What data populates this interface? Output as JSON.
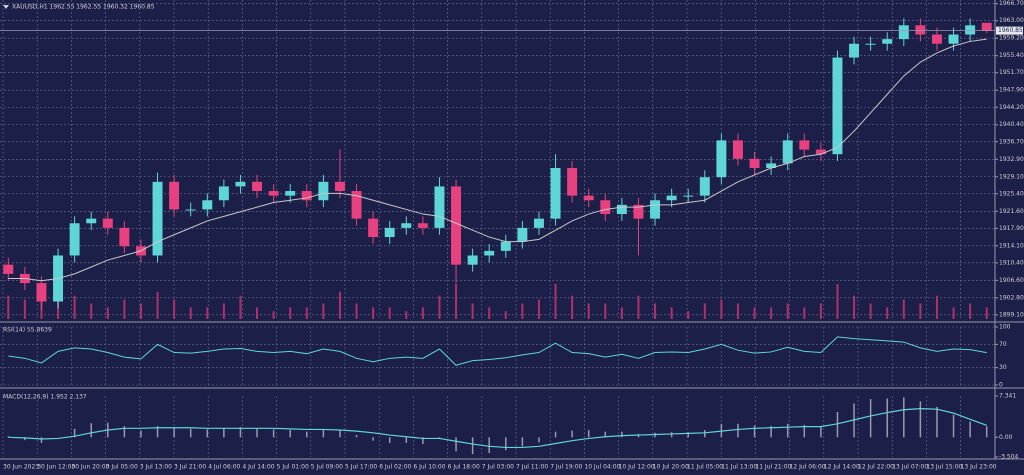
{
  "chart_data": [
    {
      "type": "candlestick",
      "title": "XAUUSD,H1 1962.55 1962.55 1960.32 1960.85",
      "open": [
        1910,
        1908,
        1906,
        1902,
        1912,
        1919,
        1920,
        1918,
        1914,
        1912,
        1928,
        1922,
        1922,
        1924,
        1927,
        1928,
        1926,
        1925,
        1926,
        1924,
        1928,
        1926,
        1920,
        1916,
        1918,
        1919,
        1918,
        1927,
        1910,
        1912,
        1913,
        1915,
        1918,
        1920,
        1931,
        1925,
        1924,
        1921,
        1923,
        1920,
        1924,
        1925,
        1925,
        1929,
        1937,
        1933,
        1931,
        1932,
        1937,
        1935,
        1934,
        1955,
        1958,
        1958,
        1959,
        1962,
        1960,
        1958,
        1960,
        1962.55
      ],
      "high": [
        1911.5,
        1909.5,
        1907.5,
        1913.5,
        1920.5,
        1921.5,
        1921.5,
        1919.5,
        1915.5,
        1930,
        1929.5,
        1923.5,
        1925.5,
        1928.5,
        1929.5,
        1929.5,
        1927.5,
        1927.5,
        1927.5,
        1929.5,
        1935,
        1927.5,
        1921.5,
        1919.5,
        1920.5,
        1920.5,
        1929,
        1928.5,
        1913.5,
        1914.5,
        1916.5,
        1919.5,
        1921.5,
        1934,
        1932.5,
        1926.5,
        1925.5,
        1924.5,
        1924.5,
        1925.5,
        1926.5,
        1926.5,
        1930.5,
        1938.5,
        1938.5,
        1934.5,
        1933.5,
        1938.5,
        1938.5,
        1936.5,
        1956.5,
        1959.5,
        1959.5,
        1960.5,
        1963.5,
        1963.5,
        1961.5,
        1961.5,
        1963.5,
        1962.55
      ],
      "low": [
        1906.5,
        1904.5,
        1900,
        1900.5,
        1910.5,
        1917.5,
        1916.5,
        1912.5,
        1910.5,
        1910.5,
        1920.5,
        1920.5,
        1920.5,
        1922.5,
        1925.5,
        1924.5,
        1923.5,
        1923.5,
        1922.5,
        1922.5,
        1924.5,
        1918.5,
        1914.5,
        1914.5,
        1916.5,
        1916.5,
        1916.5,
        1906,
        1908.5,
        1910.5,
        1911.5,
        1913.5,
        1916.5,
        1918.5,
        1923.5,
        1922.5,
        1919.5,
        1919.5,
        1912,
        1918.5,
        1922.5,
        1923.5,
        1923.5,
        1927.5,
        1931.5,
        1929.5,
        1929.5,
        1930.5,
        1933.5,
        1932.5,
        1932.5,
        1953.5,
        1956.5,
        1956.5,
        1957.5,
        1958.5,
        1956.5,
        1956.5,
        1958.5,
        1960.32
      ],
      "close": [
        1908,
        1906,
        1902,
        1912,
        1919,
        1920,
        1918,
        1914,
        1912,
        1928,
        1922,
        1922,
        1924,
        1927,
        1928,
        1926,
        1925,
        1926,
        1924,
        1928,
        1926,
        1920,
        1916,
        1918,
        1919,
        1918,
        1927,
        1910,
        1912,
        1913,
        1915,
        1918,
        1920,
        1931,
        1925,
        1924,
        1921,
        1923,
        1920,
        1924,
        1925,
        1925,
        1929,
        1937,
        1933,
        1931,
        1932,
        1937,
        1935,
        1934,
        1955,
        1958,
        1958,
        1959,
        1962,
        1960,
        1958,
        1960,
        1962,
        1960.85
      ],
      "ma": [
        1907,
        1907,
        1906.5,
        1907,
        1908,
        1909.5,
        1911,
        1912,
        1913,
        1915,
        1916.5,
        1918,
        1919.5,
        1920.5,
        1921.5,
        1922.5,
        1923.5,
        1924,
        1924.5,
        1925.5,
        1925.5,
        1925,
        1924,
        1923,
        1922,
        1921,
        1920.5,
        1919,
        1917.5,
        1916,
        1915,
        1915,
        1915.5,
        1917.5,
        1919.5,
        1921,
        1922,
        1922.5,
        1922.5,
        1923,
        1923,
        1923.5,
        1924,
        1926,
        1928,
        1929.5,
        1931,
        1932,
        1933.5,
        1934,
        1935.5,
        1939,
        1943,
        1947,
        1951,
        1954,
        1956,
        1957.5,
        1958.5,
        1959
      ],
      "volume": [
        30,
        25,
        45,
        40,
        30,
        20,
        15,
        25,
        20,
        35,
        25,
        15,
        15,
        20,
        30,
        15,
        10,
        15,
        15,
        20,
        35,
        20,
        15,
        15,
        10,
        15,
        30,
        45,
        20,
        15,
        10,
        20,
        25,
        45,
        30,
        20,
        20,
        15,
        30,
        20,
        15,
        10,
        20,
        25,
        20,
        15,
        15,
        20,
        15,
        20,
        45,
        30,
        20,
        15,
        25,
        20,
        30,
        15,
        20,
        15
      ],
      "up_color": "#5ed6d8",
      "down_color": "#e8417f",
      "ma_color": "#c8c8c8",
      "volume_color": "#b0306c",
      "ylim": [
        1898.2,
        1967.5
      ],
      "yticks": [
        {
          "value": 1966.7,
          "label": "1966.70"
        },
        {
          "value": 1963,
          "label": "1963.00"
        },
        {
          "value": 1959.2,
          "label": "1959.20"
        },
        {
          "value": 1955.4,
          "label": "1955.40"
        },
        {
          "value": 1951.7,
          "label": "1951.70"
        },
        {
          "value": 1947.9,
          "label": "1947.90"
        },
        {
          "value": 1944.2,
          "label": "1944.20"
        },
        {
          "value": 1940.4,
          "label": "1940.40"
        },
        {
          "value": 1936.7,
          "label": "1936.70"
        },
        {
          "value": 1932.9,
          "label": "1932.90"
        },
        {
          "value": 1929.1,
          "label": "1929.10"
        },
        {
          "value": 1925.4,
          "label": "1925.40"
        },
        {
          "value": 1921.6,
          "label": "1921.60"
        },
        {
          "value": 1917.9,
          "label": "1917.90"
        },
        {
          "value": 1914.1,
          "label": "1914.10"
        },
        {
          "value": 1910.4,
          "label": "1910.40"
        },
        {
          "value": 1906.6,
          "label": "1906.60"
        },
        {
          "value": 1902.8,
          "label": "1902.80"
        },
        {
          "value": 1899.1,
          "label": "1899.10"
        }
      ],
      "grid": true,
      "x_labels": [
        "30 Jun 2023",
        "30 Jun 12:00",
        "30 Jun 20:00",
        "3 Jul 05:00",
        "3 Jul 13:00",
        "3 Jul 21:00",
        "4 Jul 06:00",
        "4 Jul 14:00",
        "5 Jul 01:00",
        "5 Jul 09:00",
        "5 Jul 17:00",
        "6 Jul 02:00",
        "6 Jul 10:00",
        "6 Jul 18:00",
        "7 Jul 03:00",
        "7 Jul 11:00",
        "7 Jul 19:00",
        "10 Jul 04:00",
        "10 Jul 12:00",
        "10 Jul 20:00",
        "11 Jul 05:00",
        "11 Jul 13:00",
        "11 Jul 21:00",
        "12 Jul 06:00",
        "12 Jul 14:00",
        "12 Jul 22:00",
        "13 Jul 07:00",
        "13 Jul 15:00",
        "13 Jul 23:00"
      ]
    },
    {
      "type": "line",
      "title": "RSI(14) 55.8639",
      "values": [
        50,
        46,
        38,
        58,
        64,
        62,
        56,
        48,
        45,
        70,
        56,
        55,
        58,
        62,
        63,
        58,
        56,
        58,
        54,
        62,
        58,
        46,
        40,
        46,
        48,
        46,
        62,
        34,
        42,
        44,
        47,
        52,
        56,
        72,
        56,
        54,
        48,
        53,
        46,
        56,
        57,
        56,
        62,
        70,
        60,
        55,
        57,
        65,
        58,
        56,
        83,
        80,
        78,
        76,
        74,
        64,
        58,
        62,
        61,
        55.8639
      ],
      "color": "#5ed6d8",
      "ylim": [
        0,
        100
      ],
      "yticks": [
        100,
        70,
        30,
        0
      ],
      "grid": true
    },
    {
      "type": "macd",
      "title": "MACD(12,26,9) 1.952 2.137",
      "histogram": [
        0.2,
        -0.5,
        -1,
        0,
        1.5,
        2.5,
        2.6,
        2,
        1.2,
        2,
        1.8,
        1.5,
        1.4,
        1.6,
        1.8,
        1.6,
        1.4,
        1.3,
        1,
        1.3,
        1.2,
        0.4,
        -0.6,
        -1,
        -1,
        -1.2,
        -0.2,
        -2.5,
        -3,
        -2.8,
        -2.3,
        -1.6,
        -0.9,
        1,
        1.2,
        1.3,
        1,
        1,
        0.6,
        0.8,
        0.9,
        0.9,
        1.3,
        2.4,
        2.4,
        2.1,
        2,
        2.4,
        2.2,
        1.9,
        4.5,
        6,
        6.8,
        6.9,
        7.1,
        6.4,
        5.4,
        4,
        2.8,
        1.952
      ],
      "signal": [
        0,
        -0.1,
        -0.3,
        -0.2,
        0.2,
        0.8,
        1.3,
        1.6,
        1.6,
        1.7,
        1.7,
        1.7,
        1.6,
        1.6,
        1.6,
        1.6,
        1.6,
        1.5,
        1.4,
        1.4,
        1.3,
        1.1,
        0.8,
        0.4,
        0.1,
        -0.2,
        -0.2,
        -0.7,
        -1.2,
        -1.6,
        -1.8,
        -1.8,
        -1.6,
        -1.1,
        -0.6,
        -0.2,
        0.1,
        0.3,
        0.4,
        0.5,
        0.6,
        0.7,
        0.8,
        1.1,
        1.4,
        1.6,
        1.7,
        1.8,
        1.9,
        1.9,
        2.4,
        3.1,
        3.8,
        4.4,
        4.9,
        5.1,
        5,
        4.3,
        3.2,
        2.137
      ],
      "histogram_color": "#9a9ab0",
      "signal_color": "#5ed6d8",
      "ylim": [
        -3.504,
        7.341
      ],
      "yticks": [
        7.341,
        {
          "value": 0,
          "label": "0.00"
        },
        -3.504
      ],
      "grid": false
    }
  ]
}
